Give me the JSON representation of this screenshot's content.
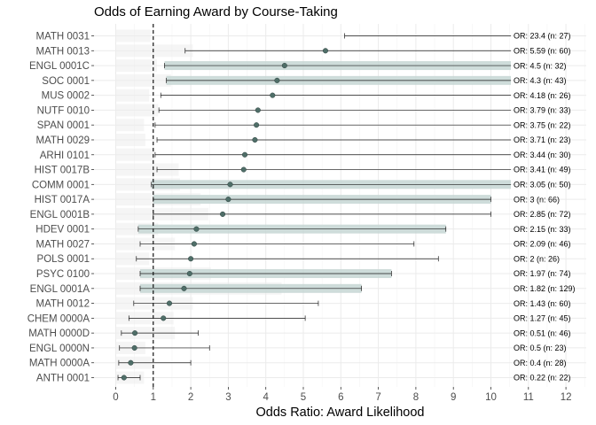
{
  "chart_data": {
    "type": "forest",
    "title": "Odds of Earning Award by Course-Taking",
    "xlabel": "Odds Ratio: Award Likelihood",
    "ylabel": "",
    "xlim": [
      -0.5,
      12.5
    ],
    "xticks": [
      0,
      1,
      2,
      3,
      4,
      5,
      6,
      7,
      8,
      9,
      10,
      11,
      12
    ],
    "reference_line": 1,
    "grid": true,
    "colors": {
      "point": "#4f6e68",
      "ci_band": "#c5d6d3",
      "error_bar": "#1a1a1a",
      "reference": "#000000",
      "grid": "#ebebeb",
      "bg_bar": "#ececec"
    },
    "rows": [
      {
        "course": "MATH 0031",
        "or": 23.4,
        "n": 27,
        "ci_low": 6.1,
        "ci_high": 90,
        "band_high": 0,
        "annotation": "OR: 23.4 (n: 27)"
      },
      {
        "course": "MATH 0013",
        "or": 5.59,
        "n": 60,
        "ci_low": 1.85,
        "ci_high": 17,
        "band_high": 0,
        "annotation": "OR: 5.59 (n: 60)"
      },
      {
        "course": "ENGL 0001C",
        "or": 4.5,
        "n": 32,
        "ci_low": 1.3,
        "ci_high": 16,
        "band_high": 16,
        "annotation": "OR: 4.5 (n: 32)"
      },
      {
        "course": "SOC 0001",
        "or": 4.3,
        "n": 43,
        "ci_low": 1.35,
        "ci_high": 14,
        "band_high": 14,
        "annotation": "OR: 4.3 (n: 43)"
      },
      {
        "course": "MUS 0002",
        "or": 4.18,
        "n": 26,
        "ci_low": 1.2,
        "ci_high": 15,
        "band_high": 0,
        "annotation": "OR: 4.18 (n: 26)"
      },
      {
        "course": "NUTF 0010",
        "or": 3.79,
        "n": 33,
        "ci_low": 1.15,
        "ci_high": 12,
        "band_high": 0,
        "annotation": "OR: 3.79 (n: 33)"
      },
      {
        "course": "SPAN 0001",
        "or": 3.75,
        "n": 22,
        "ci_low": 1.05,
        "ci_high": 14,
        "band_high": 0,
        "annotation": "OR: 3.75 (n: 22)"
      },
      {
        "course": "MATH 0029",
        "or": 3.71,
        "n": 23,
        "ci_low": 1.1,
        "ci_high": 13,
        "band_high": 0,
        "annotation": "OR: 3.71 (n: 23)"
      },
      {
        "course": "ARHI 0101",
        "or": 3.44,
        "n": 30,
        "ci_low": 1.05,
        "ci_high": 11,
        "band_high": 0,
        "annotation": "OR: 3.44 (n: 30)"
      },
      {
        "course": "HIST 0017B",
        "or": 3.41,
        "n": 49,
        "ci_low": 1.1,
        "ci_high": 11,
        "band_high": 0,
        "annotation": "OR: 3.41 (n: 49)"
      },
      {
        "course": "COMM 0001",
        "or": 3.05,
        "n": 50,
        "ci_low": 0.95,
        "ci_high": 11,
        "band_high": 11,
        "annotation": "OR: 3.05 (n: 50)"
      },
      {
        "course": "HIST 0017A",
        "or": 3,
        "n": 66,
        "ci_low": 1.0,
        "ci_high": 10,
        "band_high": 10,
        "annotation": "OR: 3 (n: 66)"
      },
      {
        "course": "ENGL 0001B",
        "or": 2.85,
        "n": 72,
        "ci_low": 1.0,
        "ci_high": 10,
        "band_high": 0,
        "annotation": "OR: 2.85 (n: 72)"
      },
      {
        "course": "HDEV 0001",
        "or": 2.15,
        "n": 33,
        "ci_low": 0.6,
        "ci_high": 8.8,
        "band_high": 8.8,
        "annotation": "OR: 2.15 (n: 33)"
      },
      {
        "course": "MATH 0027",
        "or": 2.09,
        "n": 46,
        "ci_low": 0.65,
        "ci_high": 7.95,
        "band_high": 0,
        "annotation": "OR: 2.09 (n: 46)"
      },
      {
        "course": "POLS 0001",
        "or": 2,
        "n": 26,
        "ci_low": 0.55,
        "ci_high": 8.6,
        "band_high": 0,
        "annotation": "OR: 2 (n: 26)"
      },
      {
        "course": "PSYC 0100",
        "or": 1.97,
        "n": 74,
        "ci_low": 0.65,
        "ci_high": 7.35,
        "band_high": 7.35,
        "annotation": "OR: 1.97 (n: 74)"
      },
      {
        "course": "ENGL 0001A",
        "or": 1.82,
        "n": 129,
        "ci_low": 0.65,
        "ci_high": 6.55,
        "band_high": 6.55,
        "annotation": "OR: 1.82 (n: 129)"
      },
      {
        "course": "MATH 0012",
        "or": 1.43,
        "n": 60,
        "ci_low": 0.48,
        "ci_high": 5.4,
        "band_high": 0,
        "annotation": "OR: 1.43 (n: 60)"
      },
      {
        "course": "CHEM 0000A",
        "or": 1.27,
        "n": 45,
        "ci_low": 0.35,
        "ci_high": 5.05,
        "band_high": 0,
        "annotation": "OR: 1.27 (n: 45)"
      },
      {
        "course": "MATH 0000D",
        "or": 0.51,
        "n": 46,
        "ci_low": 0.15,
        "ci_high": 2.2,
        "band_high": 0,
        "annotation": "OR: 0.51 (n: 46)"
      },
      {
        "course": "ENGL 0000N",
        "or": 0.5,
        "n": 23,
        "ci_low": 0.1,
        "ci_high": 2.5,
        "band_high": 0,
        "annotation": "OR: 0.5 (n: 23)"
      },
      {
        "course": "MATH 0000A",
        "or": 0.4,
        "n": 28,
        "ci_low": 0.08,
        "ci_high": 2.0,
        "band_high": 0,
        "annotation": "OR: 0.4 (n: 28)"
      },
      {
        "course": "ANTH 0001",
        "or": 0.22,
        "n": 22,
        "ci_low": 0.06,
        "ci_high": 0.65,
        "band_high": 0,
        "annotation": "OR: 0.22 (n: 22)"
      }
    ]
  }
}
